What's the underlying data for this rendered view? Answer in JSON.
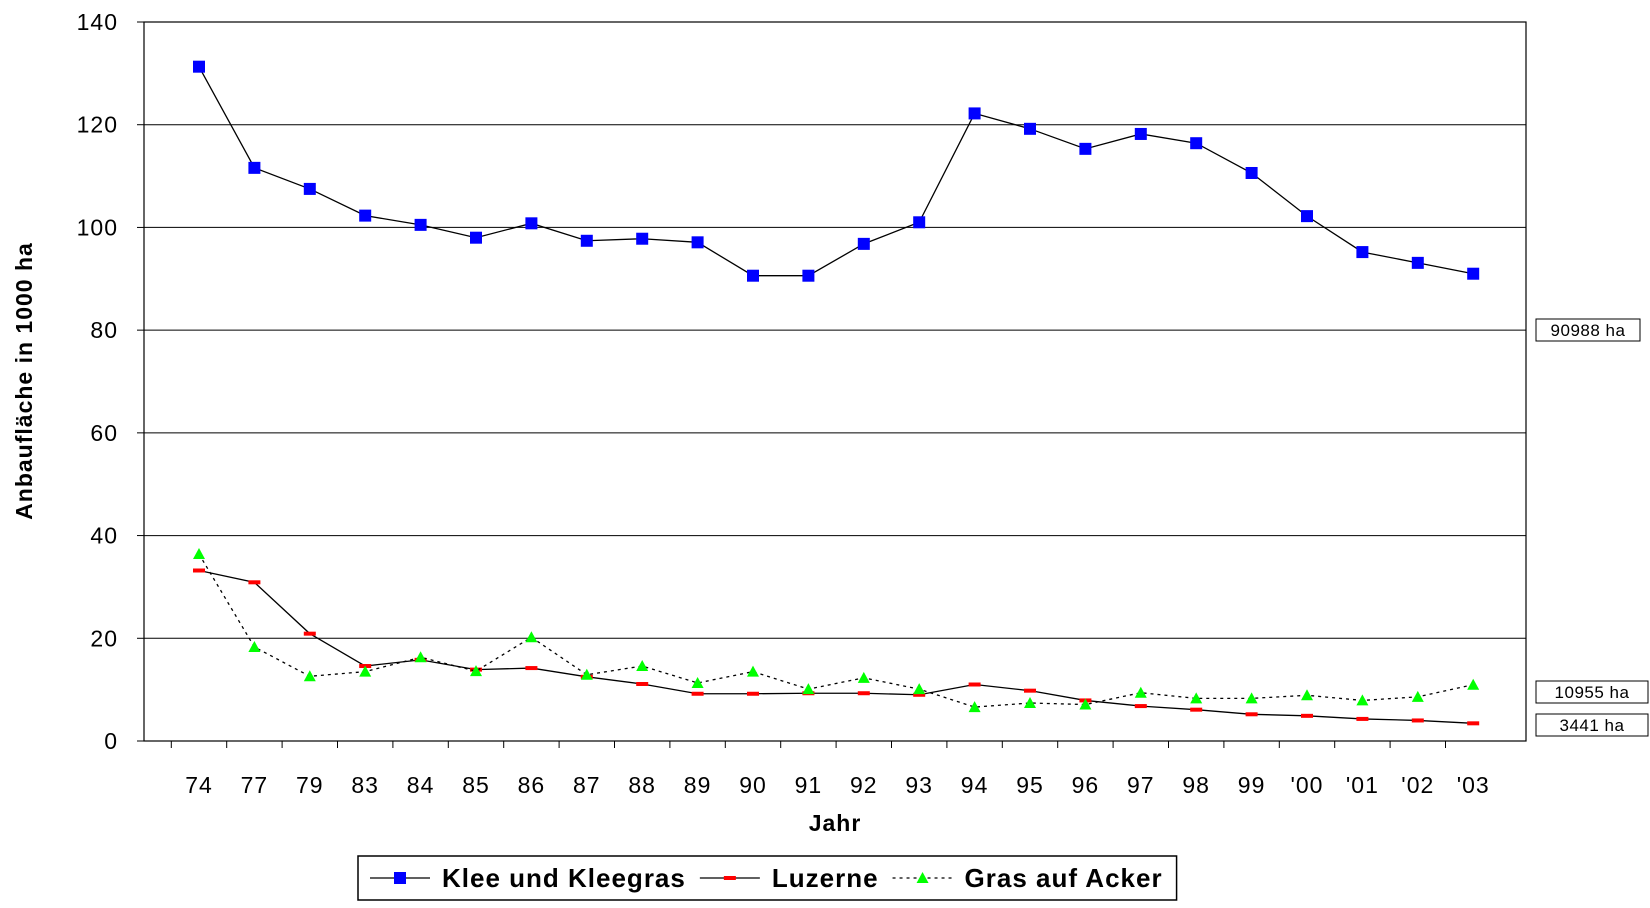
{
  "chart_data": {
    "type": "line",
    "x_label": "Jahr",
    "y_label": "Anbaufläche in 1000 ha",
    "categories": [
      "74",
      "77",
      "79",
      "83",
      "84",
      "85",
      "86",
      "87",
      "88",
      "89",
      "90",
      "91",
      "92",
      "93",
      "94",
      "95",
      "96",
      "97",
      "98",
      "99",
      "'00",
      "'01",
      "'02",
      "'03"
    ],
    "series": [
      {
        "name": "Klee und Kleegras",
        "color": "#0000ff",
        "marker": "square",
        "line_style": "solid",
        "values": [
          131.3,
          111.6,
          107.5,
          102.3,
          100.5,
          98,
          100.8,
          97.4,
          97.8,
          97.1,
          90.6,
          90.6,
          96.8,
          101,
          122.2,
          119.2,
          115.3,
          118.2,
          116.4,
          110.6,
          102.2,
          95.2,
          93.1,
          90.988
        ]
      },
      {
        "name": "Luzerne",
        "color": "#ff0000",
        "marker": "dash",
        "line_style": "solid",
        "values": [
          33.2,
          30.9,
          20.9,
          14.6,
          15.8,
          13.9,
          14.2,
          12.5,
          11.1,
          9.2,
          9.2,
          9.3,
          9.3,
          9.0,
          11.0,
          9.8,
          7.9,
          6.8,
          6.1,
          5.2,
          4.9,
          4.3,
          4.0,
          3.441
        ]
      },
      {
        "name": "Gras auf Acker",
        "color": "#00ff00",
        "marker": "triangle",
        "line_style": "dotted",
        "values": [
          36.4,
          18.3,
          12.6,
          13.5,
          16.3,
          13.6,
          20.2,
          12.9,
          14.6,
          11.3,
          13.5,
          10.1,
          12.3,
          10.1,
          6.6,
          7.4,
          7.1,
          9.4,
          8.3,
          8.3,
          8.9,
          7.9,
          8.6,
          10.955
        ]
      }
    ],
    "annotations": [
      "90988 ha",
      "10955 ha",
      "3441 ha"
    ],
    "ylim": [
      0,
      140
    ],
    "yticks": [
      0,
      20,
      40,
      60,
      80,
      100,
      120,
      140
    ],
    "grid": true,
    "legend": "bottom"
  }
}
